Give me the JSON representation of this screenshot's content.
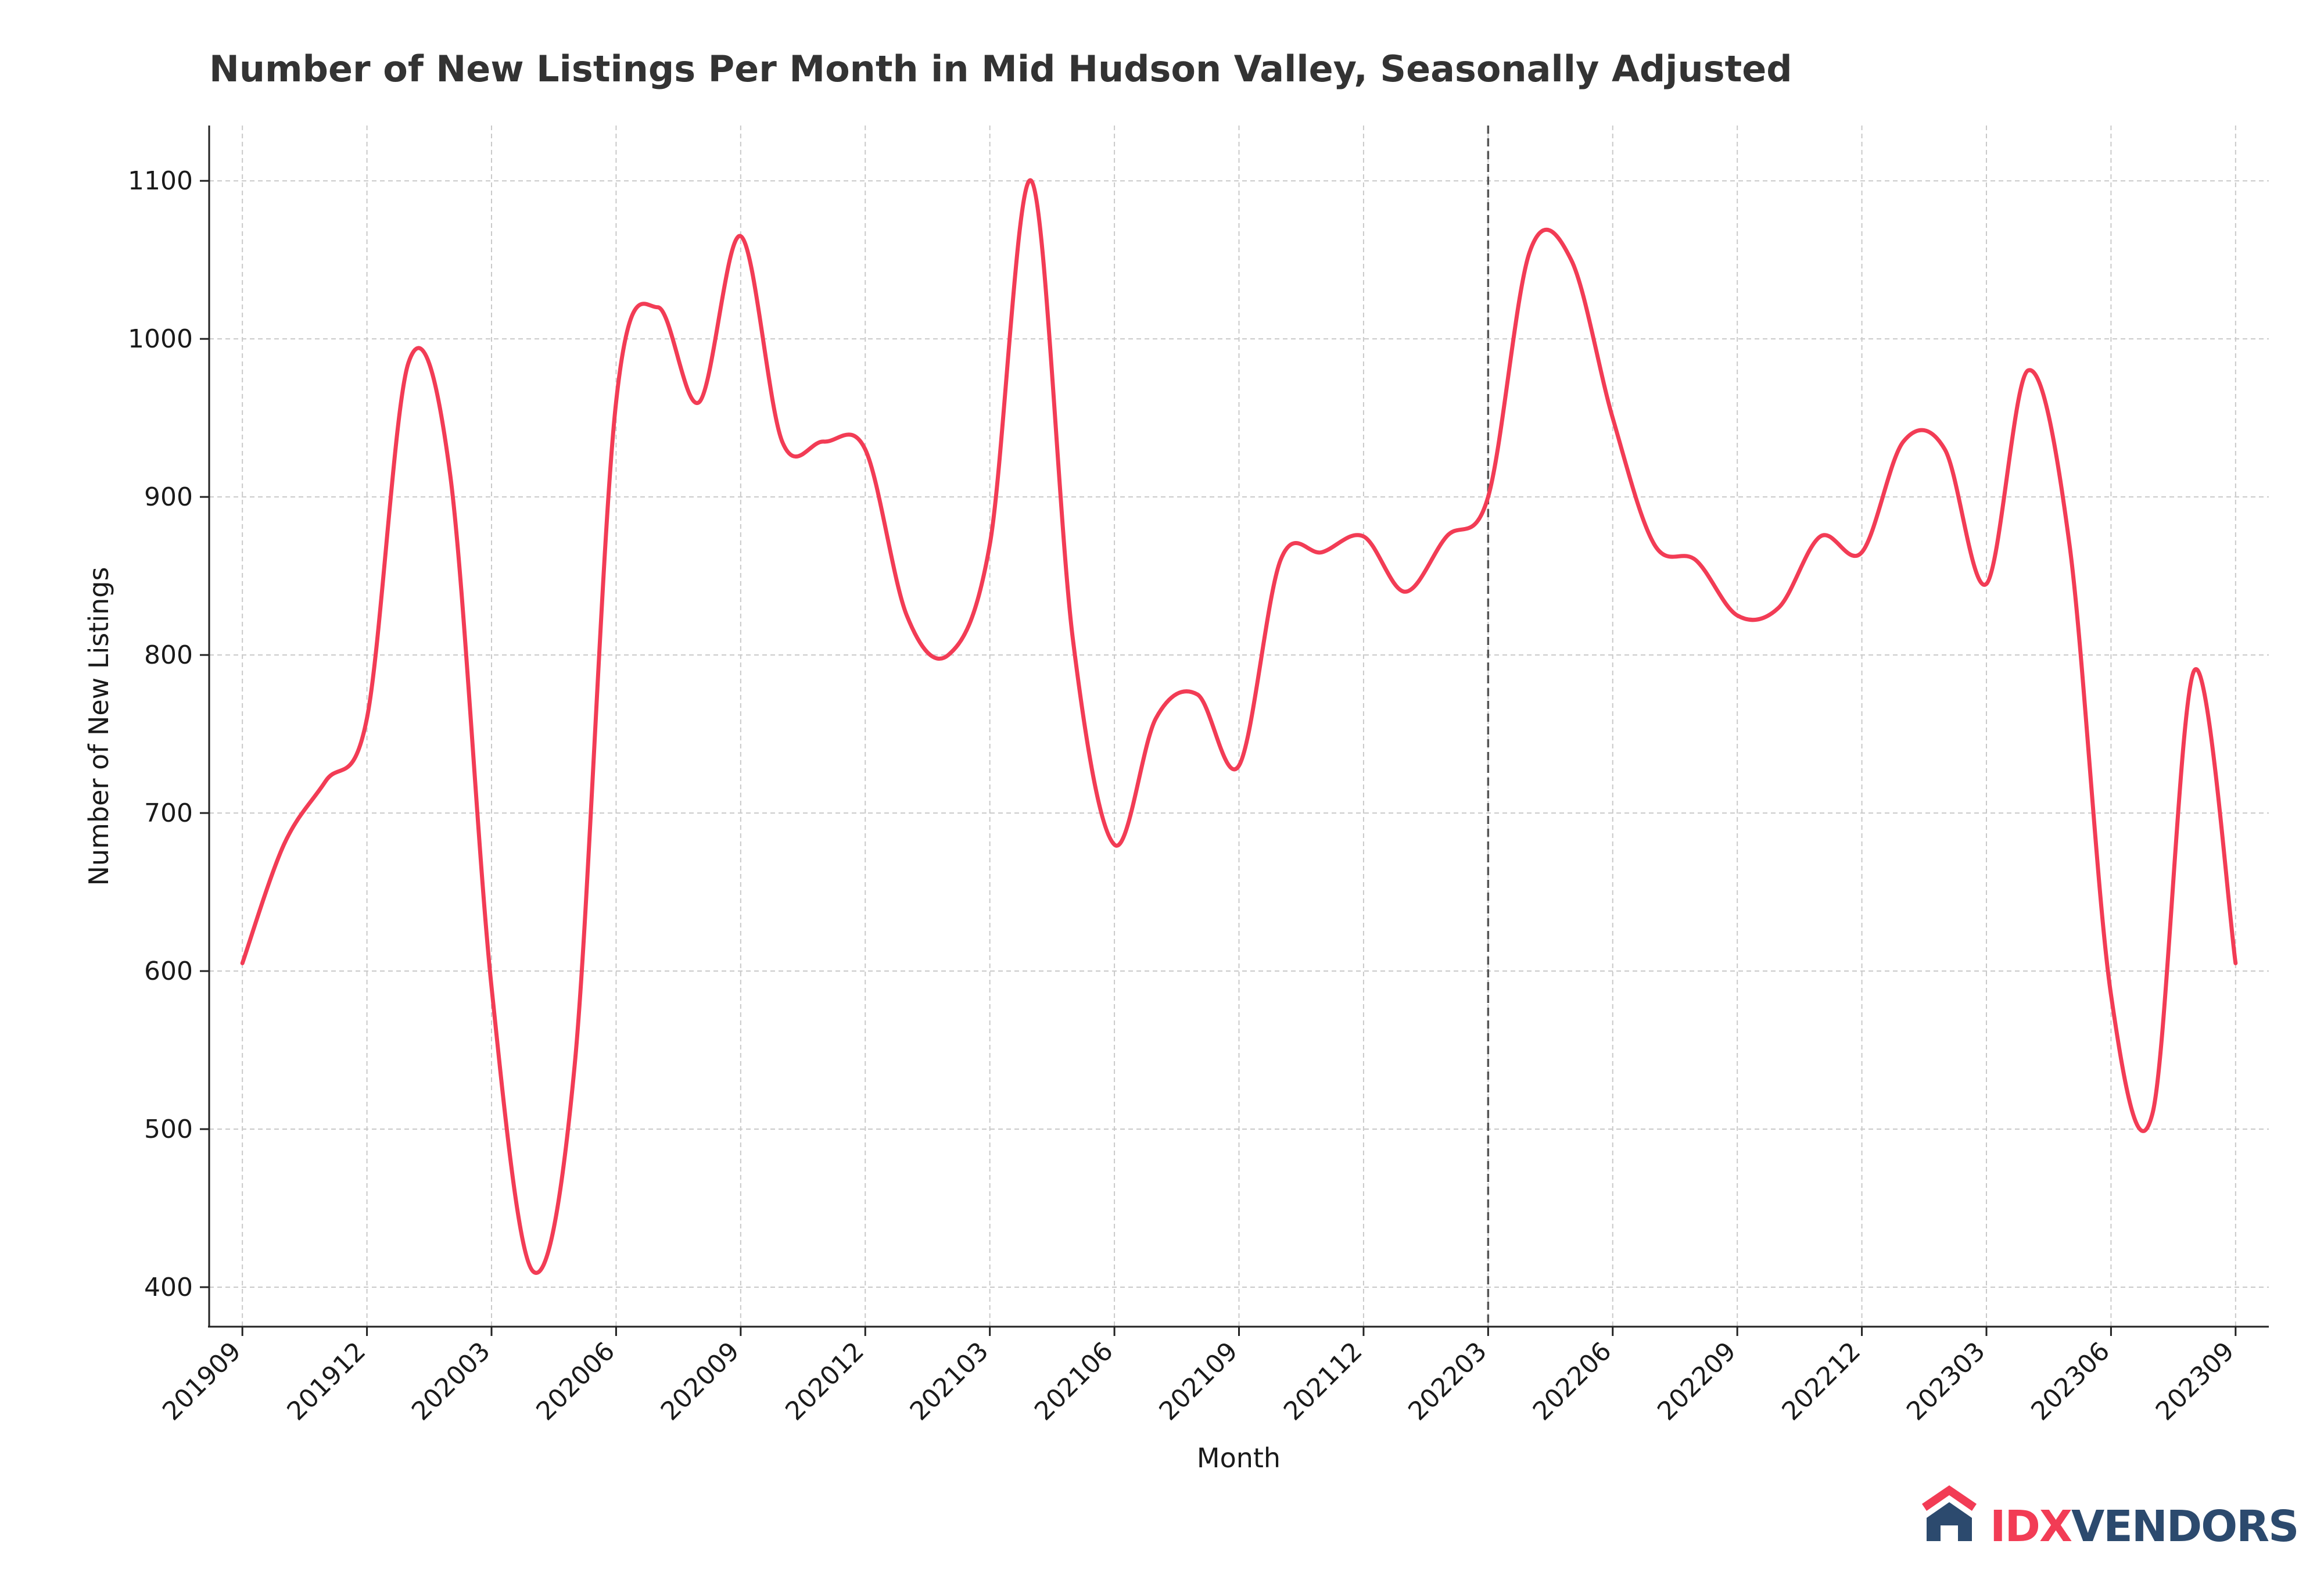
{
  "chart_data": {
    "type": "line",
    "title": "Number of New Listings Per Month in Mid Hudson Valley, Seasonally Adjusted",
    "xlabel": "Month",
    "ylabel": "Number of New Listings",
    "ylim": [
      375,
      1135
    ],
    "yticks": [
      400,
      500,
      600,
      700,
      800,
      900,
      1000,
      1100
    ],
    "xtick_labels": [
      "201909",
      "201912",
      "202003",
      "202006",
      "202009",
      "202012",
      "202103",
      "202106",
      "202109",
      "202112",
      "202203",
      "202206",
      "202209",
      "202212",
      "202303",
      "202306",
      "202309"
    ],
    "x_axis_start_month": "2019-09",
    "x_range_months": [
      -0.8,
      48.8
    ],
    "grid": true,
    "line_color": "#f23c55",
    "vline": {
      "month": "202203",
      "style": "dashed",
      "color": "#555555"
    },
    "series": [
      {
        "name": "",
        "x": [
          "201909",
          "201910",
          "201911",
          "201912",
          "202001",
          "202002",
          "202003",
          "202004",
          "202005",
          "202006",
          "202007",
          "202008",
          "202009",
          "202010",
          "202011",
          "202012",
          "202101",
          "202102",
          "202103",
          "202104",
          "202105",
          "202106",
          "202107",
          "202108",
          "202109",
          "202110",
          "202111",
          "202112",
          "202201",
          "202202",
          "202203",
          "202204",
          "202205",
          "202206",
          "202207",
          "202208",
          "202209",
          "202210",
          "202211",
          "202212",
          "202301",
          "202302",
          "202303",
          "202304",
          "202305",
          "202306",
          "202307",
          "202308",
          "202309"
        ],
        "values": [
          605,
          680,
          720,
          760,
          985,
          915,
          590,
          410,
          540,
          960,
          1020,
          960,
          1065,
          935,
          935,
          930,
          825,
          800,
          870,
          1100,
          810,
          680,
          760,
          775,
          730,
          860,
          865,
          875,
          840,
          875,
          900,
          1055,
          1050,
          950,
          870,
          860,
          825,
          830,
          875,
          865,
          935,
          930,
          845,
          980,
          870,
          585,
          510,
          790,
          605
        ]
      }
    ]
  },
  "branding": {
    "logo_icon": "house-icon",
    "logo_part1": "IDX",
    "logo_part2": "VENDORS",
    "logo_color1": "#f23c55",
    "logo_color2": "#2c4a6e"
  }
}
